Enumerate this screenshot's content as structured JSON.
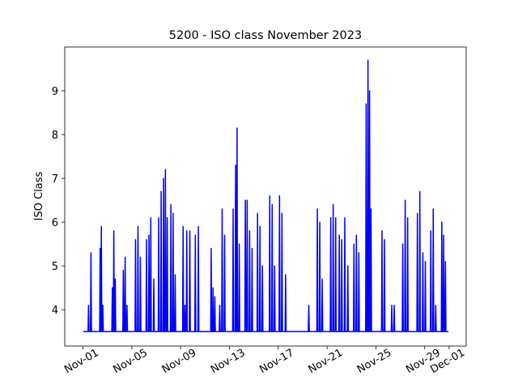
{
  "chart_data": {
    "type": "line",
    "title": "5200 - ISO class November 2023",
    "y_label": "ISO Class",
    "xlim": [
      -1.5,
      31.4
    ],
    "ylim": [
      3.17,
      10.0
    ],
    "xticks": [
      {
        "value": 0,
        "label": "Nov-01"
      },
      {
        "value": 4,
        "label": "Nov-05"
      },
      {
        "value": 8,
        "label": "Nov-09"
      },
      {
        "value": 12,
        "label": "Nov-13"
      },
      {
        "value": 16,
        "label": "Nov-17"
      },
      {
        "value": 20,
        "label": "Nov-21"
      },
      {
        "value": 24,
        "label": "Nov-25"
      },
      {
        "value": 28,
        "label": "Nov-29"
      },
      {
        "value": 30,
        "label": "Dec-01"
      }
    ],
    "yticks": [
      4,
      5,
      6,
      7,
      8,
      9
    ],
    "x": [
      0,
      0.41,
      0.45,
      0.49,
      0.61,
      0.65,
      0.69,
      1.36,
      1.4,
      1.44,
      1.46,
      1.5,
      1.54,
      1.58,
      1.62,
      1.66,
      2.36,
      2.4,
      2.44,
      2.48,
      2.52,
      2.56,
      2.6,
      2.64,
      2.68,
      3.26,
      3.3,
      3.34,
      3.41,
      3.45,
      3.49,
      3.56,
      3.6,
      3.64,
      4.26,
      4.3,
      4.34,
      4.46,
      4.5,
      4.54,
      4.66,
      4.7,
      4.74,
      5.16,
      5.2,
      5.24,
      5.36,
      5.4,
      5.44,
      5.51,
      5.55,
      5.59,
      5.76,
      5.8,
      5.84,
      6.16,
      6.2,
      6.24,
      6.36,
      6.4,
      6.44,
      6.56,
      6.6,
      6.64,
      6.71,
      6.75,
      6.79,
      6.86,
      6.9,
      6.94,
      7.16,
      7.2,
      7.24,
      7.34,
      7.38,
      7.42,
      7.51,
      7.55,
      7.59,
      8.16,
      8.2,
      8.24,
      8.31,
      8.35,
      8.39,
      8.46,
      8.5,
      8.54,
      8.71,
      8.75,
      8.79,
      9.16,
      9.2,
      9.24,
      9.41,
      9.45,
      9.49,
      10.46,
      10.5,
      10.54,
      10.61,
      10.65,
      10.69,
      10.76,
      10.8,
      10.84,
      11.16,
      11.2,
      11.24,
      11.36,
      11.4,
      11.44,
      11.56,
      11.6,
      11.64,
      12.26,
      12.3,
      12.34,
      12.46,
      12.5,
      12.54,
      12.58,
      12.62,
      12.66,
      12.76,
      12.8,
      12.84,
      13.26,
      13.3,
      13.34,
      13.41,
      13.45,
      13.49,
      13.61,
      13.65,
      13.69,
      13.81,
      13.85,
      13.89,
      14.26,
      14.3,
      14.34,
      14.46,
      14.5,
      14.54,
      14.66,
      14.7,
      14.74,
      15.26,
      15.3,
      15.34,
      15.46,
      15.5,
      15.54,
      15.66,
      15.7,
      15.74,
      16.06,
      16.1,
      16.14,
      16.26,
      16.3,
      16.34,
      16.56,
      16.6,
      16.64,
      18.46,
      18.5,
      18.54,
      19.16,
      19.2,
      19.24,
      19.36,
      19.4,
      19.44,
      19.56,
      19.6,
      19.64,
      20.26,
      20.3,
      20.34,
      20.46,
      20.5,
      20.54,
      20.66,
      20.7,
      20.74,
      20.96,
      21.0,
      21.04,
      21.16,
      21.2,
      21.24,
      21.41,
      21.45,
      21.49,
      21.66,
      21.7,
      21.74,
      22.16,
      22.2,
      22.24,
      22.36,
      22.4,
      22.44,
      22.56,
      22.6,
      22.64,
      23.16,
      23.2,
      23.24,
      23.31,
      23.35,
      23.39,
      23.44,
      23.48,
      23.52,
      23.56,
      23.6,
      23.64,
      24.46,
      24.5,
      24.54,
      24.66,
      24.7,
      24.74,
      25.26,
      25.3,
      25.34,
      25.46,
      25.5,
      25.54,
      26.16,
      26.2,
      26.24,
      26.36,
      26.4,
      26.44,
      26.56,
      26.6,
      26.64,
      27.36,
      27.4,
      27.44,
      27.56,
      27.6,
      27.64,
      27.81,
      27.85,
      27.89,
      28.01,
      28.05,
      28.09,
      28.46,
      28.5,
      28.54,
      28.66,
      28.7,
      28.74,
      28.86,
      28.9,
      28.94,
      29.36,
      29.4,
      29.44,
      29.51,
      29.55,
      29.59,
      29.66,
      29.7,
      29.74,
      29.95
    ],
    "series": [
      {
        "color": "#0000ff",
        "values": [
          3.5,
          3.5,
          4.1,
          3.5,
          3.5,
          5.3,
          3.5,
          3.5,
          5.4,
          3.5,
          3.5,
          5.9,
          3.5,
          3.5,
          4.1,
          3.5,
          3.5,
          4.5,
          3.5,
          3.5,
          5.8,
          3.5,
          3.5,
          4.7,
          3.5,
          3.5,
          4.9,
          3.5,
          3.5,
          5.2,
          3.5,
          3.5,
          4.1,
          3.5,
          3.5,
          5.6,
          3.5,
          3.5,
          5.9,
          3.5,
          3.5,
          5.2,
          3.5,
          3.5,
          5.6,
          3.5,
          3.5,
          5.7,
          3.5,
          3.5,
          6.1,
          3.5,
          3.5,
          4.7,
          3.5,
          3.5,
          6.1,
          3.5,
          3.5,
          6.7,
          3.5,
          3.5,
          7.0,
          3.5,
          3.5,
          7.2,
          3.5,
          3.5,
          6.1,
          3.5,
          3.5,
          6.4,
          3.5,
          3.5,
          6.2,
          3.5,
          3.5,
          4.8,
          3.5,
          3.5,
          5.9,
          3.5,
          3.5,
          4.1,
          3.5,
          3.5,
          5.8,
          3.5,
          3.5,
          5.8,
          3.5,
          3.5,
          5.7,
          3.5,
          3.5,
          5.9,
          3.5,
          3.5,
          5.4,
          3.5,
          3.5,
          4.5,
          3.5,
          3.5,
          4.3,
          3.5,
          3.5,
          4.1,
          3.5,
          3.5,
          6.3,
          3.5,
          3.5,
          5.7,
          3.5,
          3.5,
          6.3,
          3.5,
          3.5,
          7.3,
          3.5,
          3.5,
          8.15,
          3.5,
          3.5,
          5.5,
          3.5,
          3.5,
          6.5,
          3.5,
          3.5,
          6.5,
          3.5,
          3.5,
          5.8,
          3.5,
          3.5,
          5.4,
          3.5,
          3.5,
          6.2,
          3.5,
          3.5,
          5.9,
          3.5,
          3.5,
          5.0,
          3.5,
          3.5,
          6.6,
          3.5,
          3.5,
          6.4,
          3.5,
          3.5,
          5.0,
          3.5,
          3.5,
          6.6,
          3.5,
          3.5,
          6.2,
          3.5,
          3.5,
          4.8,
          3.5,
          3.5,
          4.1,
          3.5,
          3.5,
          6.3,
          3.5,
          3.5,
          6.0,
          3.5,
          3.5,
          4.7,
          3.5,
          3.5,
          6.1,
          3.5,
          3.5,
          6.4,
          3.5,
          3.5,
          6.1,
          3.5,
          3.5,
          5.7,
          3.5,
          3.5,
          5.6,
          3.5,
          3.5,
          6.1,
          3.5,
          3.5,
          5.0,
          3.5,
          3.5,
          5.5,
          3.5,
          3.5,
          5.7,
          3.5,
          3.5,
          5.3,
          3.5,
          3.5,
          8.7,
          3.5,
          3.5,
          9.7,
          3.5,
          3.5,
          9.0,
          3.5,
          3.5,
          6.3,
          3.5,
          3.5,
          5.8,
          3.5,
          3.5,
          5.6,
          3.5,
          3.5,
          4.1,
          3.5,
          3.5,
          4.1,
          3.5,
          3.5,
          5.5,
          3.5,
          3.5,
          6.5,
          3.5,
          3.5,
          6.1,
          3.5,
          3.5,
          6.2,
          3.5,
          3.5,
          6.7,
          3.5,
          3.5,
          5.3,
          3.5,
          3.5,
          5.1,
          3.5,
          3.5,
          5.8,
          3.5,
          3.5,
          6.3,
          3.5,
          3.5,
          4.1,
          3.5,
          3.5,
          6.0,
          3.5,
          3.5,
          5.7,
          3.5,
          3.5,
          5.1,
          3.5,
          3.5
        ]
      }
    ]
  }
}
